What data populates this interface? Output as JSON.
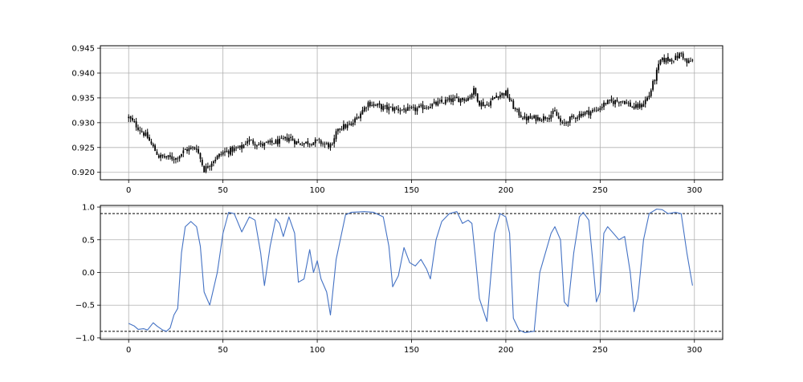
{
  "chart_data": [
    {
      "type": "candlestick",
      "title": "",
      "xlabel": "",
      "ylabel": "",
      "xlim": [
        -15,
        315
      ],
      "ylim": [
        0.9185,
        0.9455
      ],
      "grid": true,
      "bar_color": "#000000",
      "x_ticks": [
        0,
        50,
        100,
        150,
        200,
        250,
        300
      ],
      "x_tick_labels": [
        "0",
        "50",
        "100",
        "150",
        "200",
        "250",
        "300"
      ],
      "y_ticks": [
        0.92,
        0.925,
        0.93,
        0.935,
        0.94,
        0.945
      ],
      "y_tick_labels": [
        "0.920",
        "0.925",
        "0.930",
        "0.935",
        "0.940",
        "0.945"
      ],
      "close_anchors": [
        [
          0,
          0.931
        ],
        [
          5,
          0.929
        ],
        [
          10,
          0.927
        ],
        [
          13,
          0.925
        ],
        [
          16,
          0.9232
        ],
        [
          25,
          0.9228
        ],
        [
          30,
          0.9245
        ],
        [
          36,
          0.925
        ],
        [
          40,
          0.9205
        ],
        [
          45,
          0.9225
        ],
        [
          50,
          0.924
        ],
        [
          55,
          0.9245
        ],
        [
          60,
          0.925
        ],
        [
          63,
          0.9265
        ],
        [
          70,
          0.9255
        ],
        [
          80,
          0.9262
        ],
        [
          85,
          0.927
        ],
        [
          90,
          0.9258
        ],
        [
          100,
          0.9262
        ],
        [
          108,
          0.9252
        ],
        [
          111,
          0.929
        ],
        [
          118,
          0.9295
        ],
        [
          122,
          0.9315
        ],
        [
          127,
          0.934
        ],
        [
          135,
          0.933
        ],
        [
          150,
          0.9325
        ],
        [
          160,
          0.9335
        ],
        [
          170,
          0.9345
        ],
        [
          180,
          0.935
        ],
        [
          183,
          0.9365
        ],
        [
          186,
          0.934
        ],
        [
          190,
          0.9335
        ],
        [
          195,
          0.9355
        ],
        [
          200,
          0.936
        ],
        [
          205,
          0.9325
        ],
        [
          210,
          0.9308
        ],
        [
          220,
          0.931
        ],
        [
          226,
          0.932
        ],
        [
          230,
          0.9295
        ],
        [
          233,
          0.9305
        ],
        [
          240,
          0.9318
        ],
        [
          248,
          0.9325
        ],
        [
          253,
          0.934
        ],
        [
          262,
          0.9345
        ],
        [
          268,
          0.933
        ],
        [
          272,
          0.9335
        ],
        [
          276,
          0.9355
        ],
        [
          279,
          0.939
        ],
        [
          282,
          0.9425
        ],
        [
          290,
          0.943
        ],
        [
          293,
          0.944
        ],
        [
          296,
          0.942
        ],
        [
          299,
          0.9425
        ]
      ]
    },
    {
      "type": "line",
      "title": "",
      "xlabel": "",
      "ylabel": "",
      "xlim": [
        -15,
        315
      ],
      "ylim": [
        -1.025,
        1.025
      ],
      "grid": true,
      "series": [
        {
          "color": "#4472c4",
          "points": [
            [
              0,
              -0.78
            ],
            [
              3,
              -0.82
            ],
            [
              5,
              -0.87
            ],
            [
              8,
              -0.86
            ],
            [
              10,
              -0.88
            ],
            [
              13,
              -0.77
            ],
            [
              15,
              -0.82
            ],
            [
              18,
              -0.88
            ],
            [
              20,
              -0.9
            ],
            [
              22,
              -0.85
            ],
            [
              24,
              -0.65
            ],
            [
              26,
              -0.55
            ],
            [
              28,
              0.3
            ],
            [
              30,
              0.7
            ],
            [
              33,
              0.78
            ],
            [
              36,
              0.7
            ],
            [
              38,
              0.4
            ],
            [
              40,
              -0.3
            ],
            [
              43,
              -0.5
            ],
            [
              47,
              0.0
            ],
            [
              50,
              0.6
            ],
            [
              53,
              0.92
            ],
            [
              56,
              0.9
            ],
            [
              60,
              0.62
            ],
            [
              64,
              0.85
            ],
            [
              67,
              0.8
            ],
            [
              70,
              0.3
            ],
            [
              72,
              -0.2
            ],
            [
              75,
              0.4
            ],
            [
              78,
              0.82
            ],
            [
              80,
              0.75
            ],
            [
              82,
              0.55
            ],
            [
              85,
              0.85
            ],
            [
              88,
              0.6
            ],
            [
              90,
              -0.15
            ],
            [
              93,
              -0.1
            ],
            [
              96,
              0.35
            ],
            [
              98,
              0.0
            ],
            [
              100,
              0.18
            ],
            [
              102,
              -0.1
            ],
            [
              105,
              -0.3
            ],
            [
              107,
              -0.65
            ],
            [
              110,
              0.2
            ],
            [
              115,
              0.88
            ],
            [
              118,
              0.92
            ],
            [
              125,
              0.93
            ],
            [
              130,
              0.92
            ],
            [
              135,
              0.85
            ],
            [
              138,
              0.4
            ],
            [
              140,
              -0.22
            ],
            [
              143,
              -0.05
            ],
            [
              146,
              0.38
            ],
            [
              149,
              0.15
            ],
            [
              152,
              0.1
            ],
            [
              155,
              0.2
            ],
            [
              158,
              0.05
            ],
            [
              160,
              -0.1
            ],
            [
              163,
              0.5
            ],
            [
              166,
              0.78
            ],
            [
              170,
              0.9
            ],
            [
              174,
              0.93
            ],
            [
              177,
              0.75
            ],
            [
              180,
              0.8
            ],
            [
              182,
              0.75
            ],
            [
              184,
              0.2
            ],
            [
              186,
              -0.4
            ],
            [
              190,
              -0.75
            ],
            [
              194,
              0.6
            ],
            [
              197,
              0.9
            ],
            [
              200,
              0.85
            ],
            [
              202,
              0.6
            ],
            [
              204,
              -0.7
            ],
            [
              207,
              -0.88
            ],
            [
              210,
              -0.92
            ],
            [
              215,
              -0.9
            ],
            [
              218,
              0.0
            ],
            [
              220,
              0.2
            ],
            [
              224,
              0.6
            ],
            [
              226,
              0.7
            ],
            [
              229,
              0.5
            ],
            [
              231,
              -0.45
            ],
            [
              233,
              -0.52
            ],
            [
              236,
              0.3
            ],
            [
              239,
              0.85
            ],
            [
              241,
              0.92
            ],
            [
              244,
              0.8
            ],
            [
              246,
              0.2
            ],
            [
              248,
              -0.45
            ],
            [
              250,
              -0.3
            ],
            [
              252,
              0.6
            ],
            [
              254,
              0.7
            ],
            [
              257,
              0.6
            ],
            [
              260,
              0.5
            ],
            [
              263,
              0.55
            ],
            [
              266,
              0.0
            ],
            [
              268,
              -0.6
            ],
            [
              270,
              -0.4
            ],
            [
              273,
              0.5
            ],
            [
              276,
              0.9
            ],
            [
              280,
              0.97
            ],
            [
              283,
              0.96
            ],
            [
              286,
              0.9
            ],
            [
              290,
              0.92
            ],
            [
              293,
              0.9
            ],
            [
              296,
              0.3
            ],
            [
              299,
              -0.2
            ]
          ]
        }
      ],
      "reference_lines": [
        {
          "y": 0.9,
          "style": "dashed",
          "color": "#000000"
        },
        {
          "y": -0.9,
          "style": "dashed",
          "color": "#000000"
        }
      ],
      "x_ticks": [
        0,
        50,
        100,
        150,
        200,
        250,
        300
      ],
      "x_tick_labels": [
        "0",
        "50",
        "100",
        "150",
        "200",
        "250",
        "300"
      ],
      "y_ticks": [
        1.0,
        0.5,
        0.0,
        -0.5,
        -1.0
      ],
      "y_tick_labels": [
        "1.0",
        "0.5",
        "0.0",
        "−0.5",
        "−1.0"
      ]
    }
  ]
}
